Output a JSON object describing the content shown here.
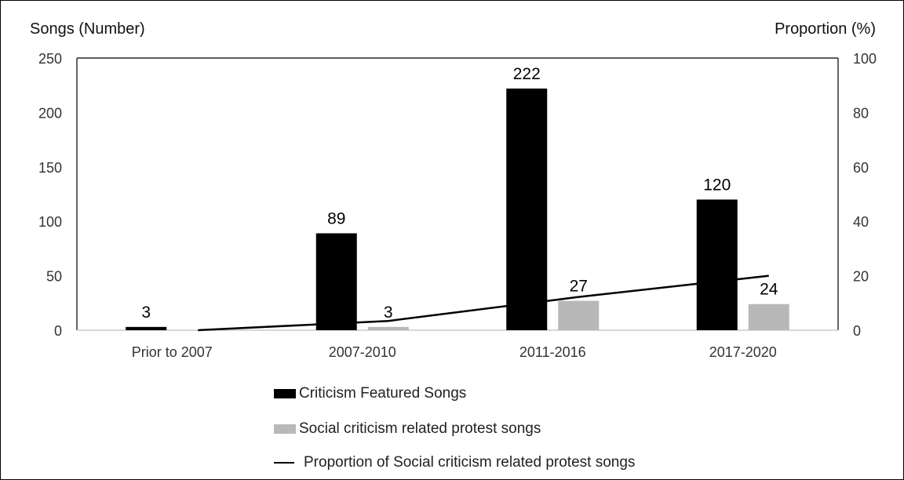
{
  "chart_data": {
    "type": "bar",
    "categories": [
      "Prior to 2007",
      "2007-2010",
      "2011-2016",
      "2017-2020"
    ],
    "series": [
      {
        "name": "Criticism Featured Songs",
        "values": [
          3,
          89,
          222,
          120
        ],
        "axis": "left",
        "color": "#000000"
      },
      {
        "name": "Social criticism related protest songs",
        "values": [
          null,
          3,
          27,
          24
        ],
        "axis": "left",
        "color": "#b8b8b8"
      },
      {
        "name": "Proportion of Social criticism related protest songs",
        "type": "line",
        "values": [
          0,
          3.4,
          12.2,
          20
        ],
        "axis": "right",
        "color": "#000000"
      }
    ],
    "data_labels": {
      "Criticism Featured Songs": [
        "3",
        "89",
        "222",
        "120"
      ],
      "Social criticism related protest songs": [
        "",
        "3",
        "27",
        "24"
      ]
    },
    "ylabel": "Songs (Number)",
    "ylabel_right": "Proportion (%)",
    "ylim": [
      0,
      250
    ],
    "ylim_right": [
      0,
      100
    ],
    "yticks": [
      "0",
      "50",
      "100",
      "150",
      "200",
      "250"
    ],
    "yticks_right": [
      "0",
      "20",
      "40",
      "60",
      "80",
      "100"
    ],
    "grid": false,
    "legend_position": "bottom"
  }
}
